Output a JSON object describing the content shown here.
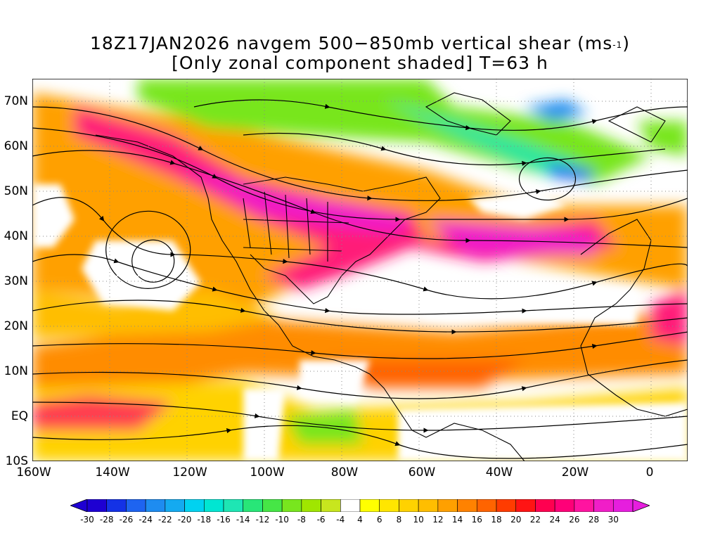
{
  "title": {
    "line1_prefix": "18Z17JAN2026 navgem 500−850mb vertical shear (ms",
    "line1_sup": "-1",
    "line1_suffix": ")",
    "line2": "[Only zonal component shaded] T=63 h"
  },
  "axes": {
    "lat_labels": [
      "70N",
      "60N",
      "50N",
      "40N",
      "30N",
      "20N",
      "10N",
      "EQ",
      "10S"
    ],
    "lon_labels": [
      "160W",
      "140W",
      "120W",
      "100W",
      "80W",
      "60W",
      "40W",
      "20W",
      "0"
    ]
  },
  "colorbar": {
    "labels": [
      "-30",
      "-28",
      "-26",
      "-24",
      "-22",
      "-20",
      "-18",
      "-16",
      "-14",
      "-12",
      "-10",
      "-8",
      "-6",
      "-4",
      "4",
      "6",
      "8",
      "10",
      "12",
      "14",
      "16",
      "18",
      "20",
      "22",
      "24",
      "26",
      "28",
      "30"
    ],
    "colors": [
      "#1e00d2",
      "#1432e6",
      "#1e64f0",
      "#1e8cf0",
      "#14aaf0",
      "#00d2f0",
      "#00e6d2",
      "#1ee6b4",
      "#28e678",
      "#46e646",
      "#78e61e",
      "#a0e600",
      "#c8e61e",
      "#ffffff",
      "#ffff00",
      "#ffe600",
      "#ffd200",
      "#ffbe00",
      "#ffa000",
      "#ff8200",
      "#ff6400",
      "#ff3c00",
      "#ff1414",
      "#ff0050",
      "#ff0078",
      "#ff14a0",
      "#f01ec8",
      "#e61ede"
    ]
  }
}
